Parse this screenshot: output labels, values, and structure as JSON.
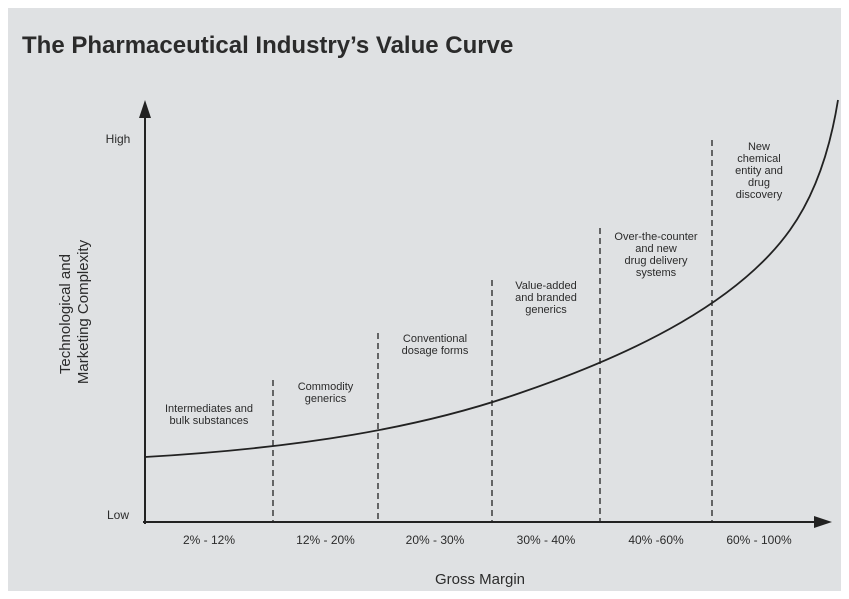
{
  "title": "The Pharmaceutical Industry’s Value Curve",
  "y_axis": {
    "label": [
      "Technological and",
      "Marketing Complexity"
    ],
    "high": "High",
    "low": "Low"
  },
  "x_axis": {
    "label": "Gross Margin"
  },
  "segments": [
    {
      "label": [
        "Intermediates and",
        "bulk substances"
      ],
      "range": "2% - 12%"
    },
    {
      "label": [
        "Commodity",
        "generics"
      ],
      "range": "12% - 20%"
    },
    {
      "label": [
        "Conventional",
        "dosage forms"
      ],
      "range": "20% - 30%"
    },
    {
      "label": [
        "Value-added",
        "and branded",
        "generics"
      ],
      "range": "30% - 40%"
    },
    {
      "label": [
        "Over-the-counter",
        "and new",
        "drug delivery",
        "systems"
      ],
      "range": "40% -60%"
    },
    {
      "label": [
        "New",
        "chemical",
        "entity and",
        "drug",
        "discovery"
      ],
      "range": "60% - 100%"
    }
  ]
}
